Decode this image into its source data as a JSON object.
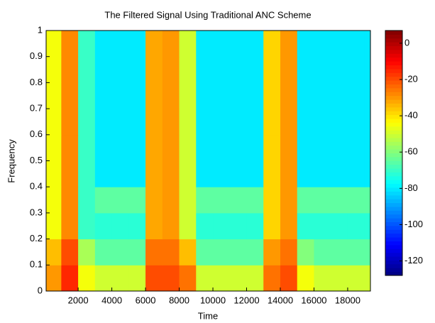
{
  "chart_data": {
    "type": "heatmap",
    "title": "The Filtered Signal Using Traditional ANC Scheme",
    "x_label": "Time",
    "y_label": "Frequency",
    "xbins": [
      100,
      1000,
      2000,
      3000,
      4000,
      5000,
      6000,
      7000,
      8000,
      9000,
      10000,
      11000,
      12000,
      13000,
      14000,
      15000,
      16000,
      17000,
      18000,
      19000,
      19350
    ],
    "ybins": [
      0,
      0.1,
      0.2,
      0.3,
      0.4,
      0.5,
      0.6,
      0.7,
      0.8,
      0.9,
      1
    ],
    "z": [
      [
        -30,
        -15,
        -45,
        -50,
        -50,
        -50,
        -20,
        -20,
        -25,
        -50,
        -50,
        -50,
        -50,
        -25,
        -20,
        -45,
        -50,
        -50,
        -50,
        -50
      ],
      [
        -35,
        -20,
        -55,
        -65,
        -65,
        -65,
        -25,
        -25,
        -35,
        -65,
        -65,
        -65,
        -65,
        -30,
        -25,
        -60,
        -65,
        -65,
        -65,
        -65
      ],
      [
        -45,
        -28,
        -70,
        -72,
        -72,
        -72,
        -32,
        -30,
        -50,
        -72,
        -72,
        -72,
        -72,
        -38,
        -30,
        -72,
        -72,
        -72,
        -72,
        -72
      ],
      [
        -45,
        -28,
        -70,
        -65,
        -65,
        -65,
        -32,
        -30,
        -50,
        -65,
        -65,
        -65,
        -65,
        -38,
        -30,
        -65,
        -65,
        -65,
        -65,
        -65
      ],
      [
        -45,
        -28,
        -70,
        -80,
        -80,
        -80,
        -32,
        -30,
        -50,
        -80,
        -80,
        -80,
        -80,
        -38,
        -30,
        -80,
        -80,
        -80,
        -80,
        -80
      ],
      [
        -45,
        -28,
        -70,
        -80,
        -80,
        -80,
        -32,
        -30,
        -50,
        -80,
        -80,
        -80,
        -80,
        -38,
        -30,
        -80,
        -80,
        -80,
        -80,
        -80
      ],
      [
        -45,
        -28,
        -70,
        -80,
        -80,
        -80,
        -32,
        -30,
        -50,
        -80,
        -80,
        -80,
        -80,
        -38,
        -30,
        -80,
        -80,
        -80,
        -80,
        -80
      ],
      [
        -45,
        -28,
        -70,
        -80,
        -80,
        -80,
        -32,
        -30,
        -50,
        -80,
        -80,
        -80,
        -80,
        -38,
        -30,
        -80,
        -80,
        -80,
        -80,
        -80
      ],
      [
        -45,
        -28,
        -70,
        -80,
        -80,
        -80,
        -32,
        -30,
        -50,
        -80,
        -80,
        -80,
        -80,
        -38,
        -30,
        -80,
        -80,
        -80,
        -80,
        -80
      ],
      [
        -45,
        -28,
        -70,
        -80,
        -80,
        -80,
        -32,
        -30,
        -50,
        -80,
        -80,
        -80,
        -80,
        -38,
        -30,
        -80,
        -80,
        -80,
        -80,
        -80
      ]
    ],
    "xlim": [
      100,
      19350
    ],
    "xticks": [
      2000,
      4000,
      6000,
      8000,
      10000,
      12000,
      14000,
      16000,
      18000
    ],
    "ylim": [
      0,
      1
    ],
    "yticks": [
      0,
      0.1,
      0.2,
      0.3,
      0.4,
      0.5,
      0.6,
      0.7,
      0.8,
      0.9,
      1
    ],
    "clim": [
      -128,
      7
    ],
    "cticks": [
      0,
      -20,
      -40,
      -60,
      -80,
      -100,
      -120
    ],
    "colormap": "jet"
  }
}
